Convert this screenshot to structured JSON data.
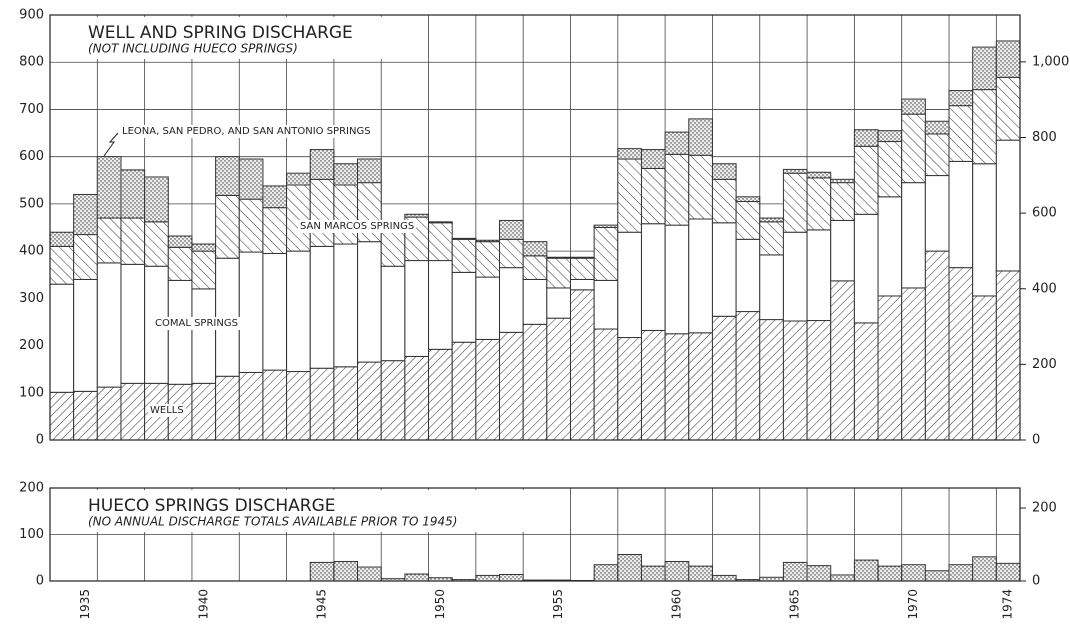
{
  "chart_data": [
    {
      "type": "bar",
      "stacked": true,
      "title": "WELL AND SPRING DISCHARGE",
      "subtitle": "(NOT INCLUDING HUECO SPRINGS)",
      "ylim": [
        0,
        900
      ],
      "yticks": [
        0,
        100,
        200,
        300,
        400,
        500,
        600,
        700,
        800,
        900
      ],
      "y2lim": [
        0,
        1124
      ],
      "y2ticks": [
        0,
        200,
        400,
        600,
        800,
        {
          "value": 1000,
          "label": "1,000"
        }
      ],
      "grid": true,
      "series": [
        {
          "name": "WELLS",
          "pattern": "hatch-forward",
          "color": "#333333",
          "values": [
            101,
            103,
            112,
            120,
            120,
            118,
            120,
            135,
            143,
            148,
            145,
            152,
            155,
            165,
            168,
            177,
            192,
            207,
            213,
            228,
            245,
            258,
            318,
            235,
            217,
            232,
            225,
            227,
            262,
            272,
            255,
            252,
            253,
            337,
            248,
            305,
            322,
            400,
            365,
            305,
            358
          ]
        },
        {
          "name": "COMAL SPRINGS",
          "pattern": "blank",
          "color": "#333333",
          "values": [
            229,
            237,
            263,
            252,
            248,
            220,
            200,
            250,
            255,
            247,
            255,
            258,
            260,
            255,
            200,
            203,
            188,
            148,
            132,
            137,
            95,
            64,
            22,
            103,
            223,
            226,
            230,
            241,
            198,
            153,
            137,
            188,
            192,
            128,
            230,
            210,
            223,
            160,
            225,
            280,
            277
          ]
        },
        {
          "name": "SAN MARCOS SPRINGS",
          "pattern": "hatch-back",
          "color": "#333333",
          "values": [
            80,
            95,
            95,
            98,
            94,
            70,
            80,
            133,
            112,
            97,
            140,
            142,
            125,
            125,
            72,
            92,
            80,
            70,
            75,
            60,
            50,
            63,
            45,
            112,
            155,
            117,
            150,
            135,
            92,
            80,
            70,
            125,
            110,
            80,
            144,
            117,
            145,
            88,
            118,
            157,
            133
          ]
        },
        {
          "name": "LEONA, SAN PEDRO, AND SAN ANTONIO SPRINGS",
          "pattern": "dots",
          "color": "#333333",
          "values": [
            30,
            85,
            130,
            102,
            95,
            24,
            15,
            82,
            85,
            46,
            25,
            63,
            45,
            50,
            10,
            6,
            2,
            2,
            3,
            40,
            30,
            2,
            2,
            5,
            22,
            40,
            47,
            77,
            33,
            10,
            8,
            8,
            12,
            7,
            35,
            23,
            32,
            27,
            32,
            90,
            77
          ]
        }
      ]
    },
    {
      "type": "bar",
      "title": "HUECO SPRINGS DISCHARGE",
      "subtitle": "(NO ANNUAL DISCHARGE TOTALS AVAILABLE PRIOR TO 1945)",
      "ylim": [
        0,
        200
      ],
      "yticks": [
        0,
        100,
        200
      ],
      "y2lim": [
        0,
        255
      ],
      "y2ticks": [
        0,
        200
      ],
      "grid": true,
      "pattern": "dots",
      "color": "#333333",
      "categories": [
        null,
        1935,
        null,
        null,
        null,
        null,
        1940,
        null,
        null,
        null,
        null,
        1945,
        null,
        null,
        null,
        null,
        1950,
        null,
        null,
        null,
        null,
        1955,
        null,
        null,
        null,
        null,
        1960,
        null,
        null,
        null,
        null,
        1965,
        null,
        null,
        null,
        null,
        1970,
        null,
        null,
        null,
        1974
      ],
      "values": [
        null,
        null,
        null,
        null,
        null,
        null,
        null,
        null,
        null,
        null,
        null,
        40,
        42,
        30,
        5,
        15,
        7,
        3,
        12,
        14,
        2,
        2,
        1,
        35,
        57,
        32,
        42,
        32,
        12,
        3,
        8,
        40,
        33,
        13,
        45,
        32,
        35,
        22,
        35,
        52,
        38
      ]
    }
  ]
}
